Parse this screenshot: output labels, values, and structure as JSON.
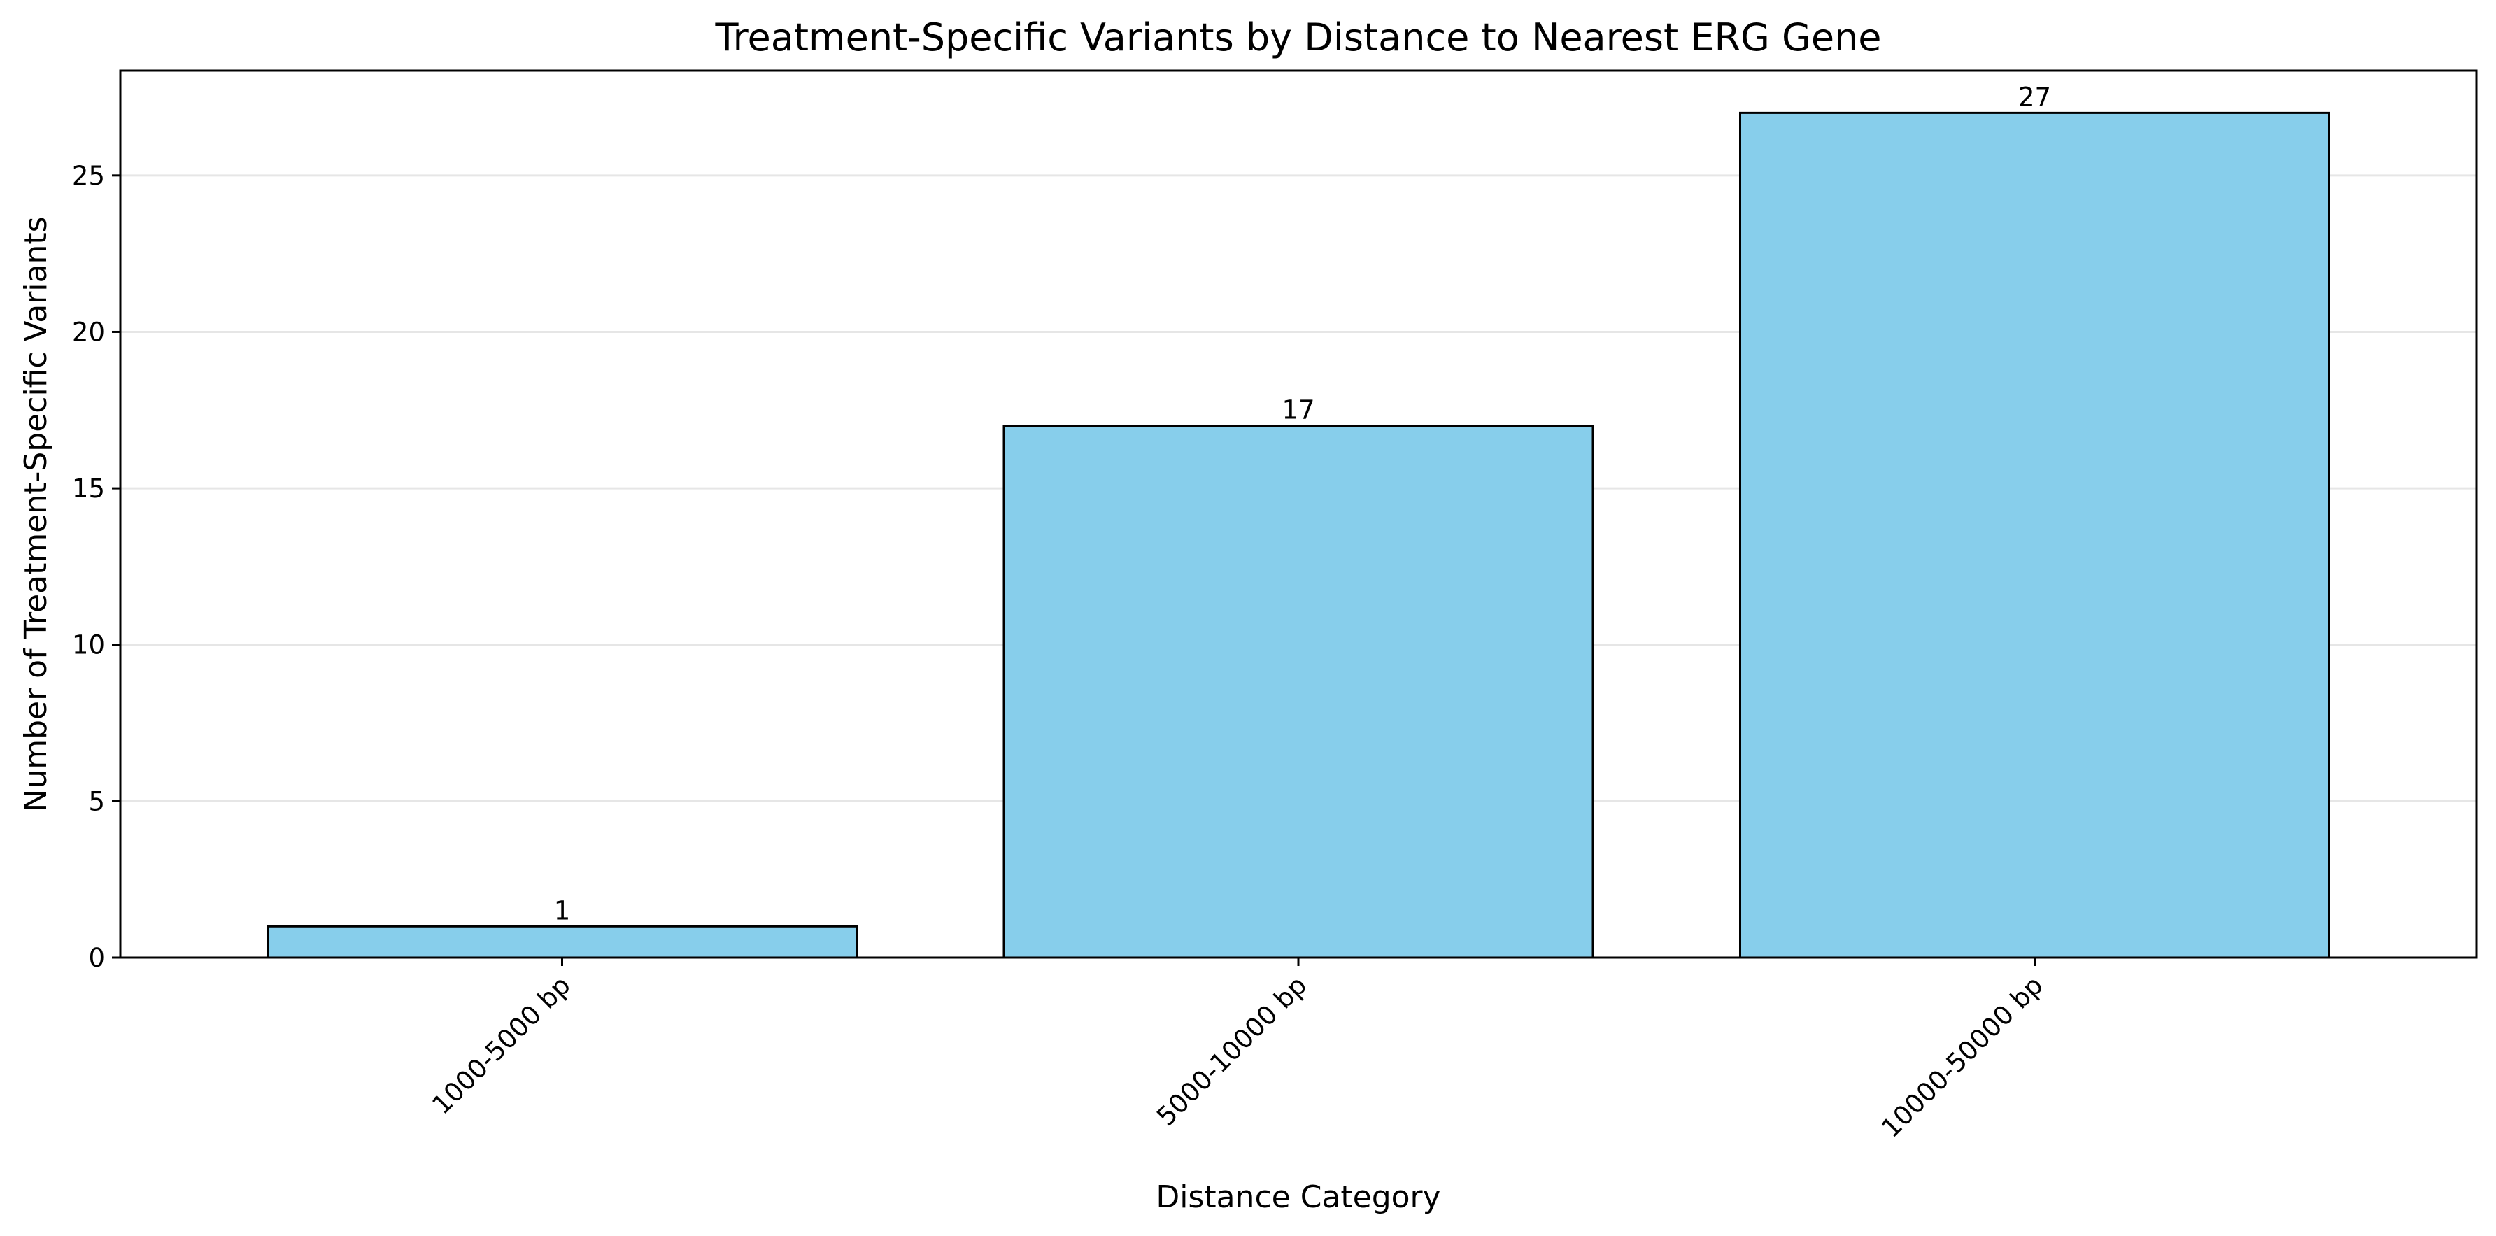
{
  "chart_data": {
    "type": "bar",
    "title": "Treatment-Specific Variants by Distance to Nearest ERG Gene",
    "xlabel": "Distance Category",
    "ylabel": "Number of Treatment-Specific Variants",
    "categories": [
      "1000-5000 bp",
      "5000-10000 bp",
      "10000-50000 bp"
    ],
    "values": [
      1,
      17,
      27
    ],
    "data_labels": [
      "1",
      "17",
      "27"
    ],
    "ylim": [
      0,
      28.35
    ],
    "yticks": [
      0,
      5,
      10,
      15,
      20,
      25
    ],
    "ytick_labels": [
      "0",
      "5",
      "10",
      "15",
      "20",
      "25"
    ],
    "grid": "y-axis, light",
    "legend": "none",
    "colors": {
      "bar_fill": "#87ceeb",
      "bar_edge": "#000000",
      "grid": "#e6e6e6",
      "axis": "#000000"
    }
  }
}
